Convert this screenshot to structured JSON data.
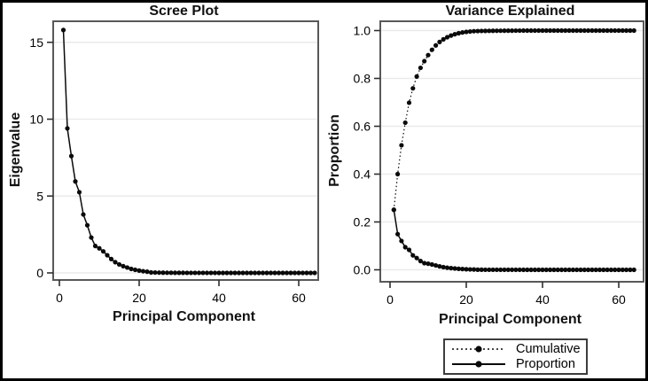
{
  "style": {
    "data_color": "#0a0a0a",
    "frame_color": "#595959",
    "grid_color": "#eaeaea",
    "tick_color": "#2f2f2f"
  },
  "legend": {
    "entries": [
      {
        "label": "Cumulative",
        "line": "dotted",
        "marker": "filled-circle"
      },
      {
        "label": "Proportion",
        "line": "solid",
        "marker": "filled-circle"
      }
    ]
  },
  "chart_data": [
    {
      "type": "line",
      "title": "Scree Plot",
      "xlabel": "Principal Component",
      "ylabel": "Eigenvalue",
      "xlim": [
        -1.8,
        65
      ],
      "ylim": [
        -0.46,
        16.4
      ],
      "grid": "horizontal",
      "legend_position": "none",
      "xticks": {
        "values": [
          0,
          20,
          40,
          60
        ],
        "labels": [
          "0",
          "20",
          "40",
          "60"
        ]
      },
      "yticks": {
        "values": [
          0,
          5,
          10,
          15
        ],
        "labels": [
          "0",
          "5",
          "10",
          "15"
        ]
      },
      "x": [
        1,
        2,
        3,
        4,
        5,
        6,
        7,
        8,
        9,
        10,
        11,
        12,
        13,
        14,
        15,
        16,
        17,
        18,
        19,
        20,
        21,
        22,
        23,
        24,
        25,
        26,
        27,
        28,
        29,
        30,
        31,
        32,
        33,
        34,
        35,
        36,
        37,
        38,
        39,
        40,
        41,
        42,
        43,
        44,
        45,
        46,
        47,
        48,
        49,
        50,
        51,
        52,
        53,
        54,
        55,
        56,
        57,
        58,
        59,
        60,
        61,
        62,
        63,
        64
      ],
      "series": [
        {
          "name": "Eigenvalue",
          "line": "solid",
          "marker": "filled-circle",
          "y": [
            15.8,
            9.4,
            7.6,
            5.95,
            5.25,
            3.8,
            3.1,
            2.3,
            1.75,
            1.6,
            1.4,
            1.15,
            0.9,
            0.7,
            0.55,
            0.44,
            0.35,
            0.26,
            0.2,
            0.15,
            0.11,
            0.08,
            0.03,
            0.024,
            0.019,
            0.015,
            0.012,
            0.01,
            0.008,
            0.007,
            0.006,
            0.005,
            0.004,
            0.004,
            0.003,
            0.003,
            0.002,
            0.002,
            0.002,
            0.001,
            0.001,
            0.001,
            0.001,
            0,
            0,
            0,
            0,
            0,
            0,
            0,
            0,
            0,
            0,
            0,
            0,
            0,
            0,
            0,
            0,
            0,
            0,
            0,
            0,
            0
          ]
        }
      ]
    },
    {
      "type": "line",
      "title": "Variance Explained",
      "xlabel": "Principal Component",
      "ylabel": "Proportion",
      "xlim": [
        -2.6,
        66.5
      ],
      "ylim": [
        -0.05,
        1.04
      ],
      "grid": "horizontal",
      "legend_position": "bottom-right-outside",
      "xticks": {
        "values": [
          0,
          20,
          40,
          60
        ],
        "labels": [
          "0",
          "20",
          "40",
          "60"
        ]
      },
      "yticks": {
        "values": [
          0,
          0.2,
          0.4,
          0.6,
          0.8,
          1.0
        ],
        "labels": [
          "0.0",
          "0.2",
          "0.4",
          "0.6",
          "0.8",
          "1.0"
        ]
      },
      "x": [
        1,
        2,
        3,
        4,
        5,
        6,
        7,
        8,
        9,
        10,
        11,
        12,
        13,
        14,
        15,
        16,
        17,
        18,
        19,
        20,
        21,
        22,
        23,
        24,
        25,
        26,
        27,
        28,
        29,
        30,
        31,
        32,
        33,
        34,
        35,
        36,
        37,
        38,
        39,
        40,
        41,
        42,
        43,
        44,
        45,
        46,
        47,
        48,
        49,
        50,
        51,
        52,
        53,
        54,
        55,
        56,
        57,
        58,
        59,
        60,
        61,
        62,
        63,
        64
      ],
      "series": [
        {
          "name": "Cumulative",
          "line": "dotted",
          "marker": "filled-circle",
          "y": [
            0.2508,
            0.4,
            0.5206,
            0.615,
            0.6983,
            0.7586,
            0.8078,
            0.8443,
            0.8721,
            0.8975,
            0.9197,
            0.938,
            0.9523,
            0.9634,
            0.9721,
            0.9791,
            0.9847,
            0.9888,
            0.992,
            0.9944,
            0.9961,
            0.9974,
            0.9979,
            0.9983,
            0.9986,
            0.9988,
            0.999,
            0.9992,
            0.9993,
            0.9994,
            0.9995,
            0.9996,
            0.9997,
            0.9998,
            0.9999,
            0.9999,
            0.9999,
            0.9999,
            1,
            1,
            1,
            1,
            1,
            1,
            1,
            1,
            1,
            1,
            1,
            1,
            1,
            1,
            1,
            1,
            1,
            1,
            1,
            1,
            1,
            1,
            1,
            1,
            1,
            1
          ]
        },
        {
          "name": "Proportion",
          "line": "solid",
          "marker": "filled-circle",
          "y": [
            0.2508,
            0.1492,
            0.1206,
            0.0944,
            0.0833,
            0.0603,
            0.0492,
            0.0365,
            0.0278,
            0.0254,
            0.0222,
            0.0183,
            0.0143,
            0.0111,
            0.0087,
            0.007,
            0.0056,
            0.0041,
            0.0032,
            0.0024,
            0.0017,
            0.0013,
            0.0005,
            0.0004,
            0.0003,
            0.0002,
            0.0002,
            0.0002,
            0.0001,
            0.0001,
            0.0001,
            0.0001,
            0.0001,
            0.0001,
            0,
            0,
            0,
            0,
            0,
            0,
            0,
            0,
            0,
            0,
            0,
            0,
            0,
            0,
            0,
            0,
            0,
            0,
            0,
            0,
            0,
            0,
            0,
            0,
            0,
            0,
            0,
            0,
            0,
            0
          ]
        }
      ]
    }
  ]
}
